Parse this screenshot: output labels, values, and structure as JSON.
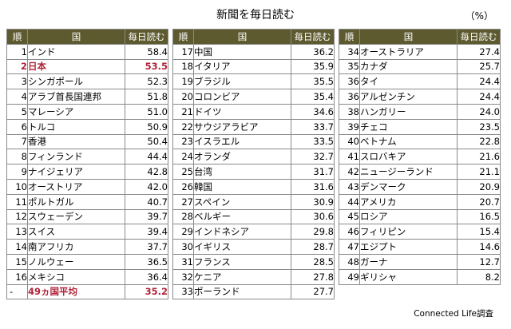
{
  "title": "新聞を毎日読む",
  "unit": "（%）",
  "headers": {
    "rank": "順",
    "country": "国",
    "value": "毎日読む"
  },
  "col1": [
    {
      "rank": "1",
      "country": "インド",
      "value": "58.4"
    },
    {
      "rank": "2",
      "country": "日本",
      "value": "53.5",
      "highlight": true
    },
    {
      "rank": "3",
      "country": "シンガポール",
      "value": "52.3"
    },
    {
      "rank": "4",
      "country": "アラブ首長国連邦",
      "value": "51.8"
    },
    {
      "rank": "5",
      "country": "マレーシア",
      "value": "51.0"
    },
    {
      "rank": "6",
      "country": "トルコ",
      "value": "50.9"
    },
    {
      "rank": "7",
      "country": "香港",
      "value": "50.4"
    },
    {
      "rank": "8",
      "country": "フィンランド",
      "value": "44.4"
    },
    {
      "rank": "9",
      "country": "ナイジェリア",
      "value": "42.8"
    },
    {
      "rank": "10",
      "country": "オーストリア",
      "value": "42.0"
    },
    {
      "rank": "11",
      "country": "ポルトガル",
      "value": "40.7"
    },
    {
      "rank": "12",
      "country": "スウェーデン",
      "value": "39.7"
    },
    {
      "rank": "13",
      "country": "スイス",
      "value": "39.4"
    },
    {
      "rank": "14",
      "country": "南アフリカ",
      "value": "37.7"
    },
    {
      "rank": "15",
      "country": "ノルウェー",
      "value": "36.5"
    },
    {
      "rank": "16",
      "country": "メキシコ",
      "value": "36.4"
    }
  ],
  "average": {
    "rank": "-",
    "country": "49ヵ国平均",
    "value": "35.2"
  },
  "col2": [
    {
      "rank": "17",
      "country": "中国",
      "value": "36.2"
    },
    {
      "rank": "18",
      "country": "イタリア",
      "value": "35.9"
    },
    {
      "rank": "19",
      "country": "ブラジル",
      "value": "35.5"
    },
    {
      "rank": "20",
      "country": "コロンビア",
      "value": "35.4"
    },
    {
      "rank": "21",
      "country": "ドイツ",
      "value": "34.6"
    },
    {
      "rank": "22",
      "country": "サウジアラビア",
      "value": "33.7"
    },
    {
      "rank": "23",
      "country": "イスラエル",
      "value": "33.5"
    },
    {
      "rank": "24",
      "country": "オランダ",
      "value": "32.7"
    },
    {
      "rank": "25",
      "country": "台湾",
      "value": "31.7"
    },
    {
      "rank": "26",
      "country": "韓国",
      "value": "31.6"
    },
    {
      "rank": "27",
      "country": "スペイン",
      "value": "30.9"
    },
    {
      "rank": "28",
      "country": "ベルギー",
      "value": "30.6"
    },
    {
      "rank": "29",
      "country": "インドネシア",
      "value": "29.8"
    },
    {
      "rank": "30",
      "country": "イギリス",
      "value": "28.7"
    },
    {
      "rank": "31",
      "country": "フランス",
      "value": "28.5"
    },
    {
      "rank": "32",
      "country": "ケニア",
      "value": "27.8"
    },
    {
      "rank": "33",
      "country": "ポーランド",
      "value": "27.7"
    }
  ],
  "col3": [
    {
      "rank": "34",
      "country": "オーストラリア",
      "value": "27.4"
    },
    {
      "rank": "35",
      "country": "カナダ",
      "value": "25.7"
    },
    {
      "rank": "36",
      "country": "タイ",
      "value": "24.4"
    },
    {
      "rank": "36",
      "country": "アルゼンチン",
      "value": "24.4"
    },
    {
      "rank": "38",
      "country": "ハンガリー",
      "value": "24.0"
    },
    {
      "rank": "39",
      "country": "チェコ",
      "value": "23.5"
    },
    {
      "rank": "40",
      "country": "ベトナム",
      "value": "22.8"
    },
    {
      "rank": "41",
      "country": "スロバキア",
      "value": "21.6"
    },
    {
      "rank": "42",
      "country": "ニュージーランド",
      "value": "21.1"
    },
    {
      "rank": "43",
      "country": "デンマーク",
      "value": "20.9"
    },
    {
      "rank": "44",
      "country": "アメリカ",
      "value": "20.7"
    },
    {
      "rank": "45",
      "country": "ロシア",
      "value": "16.5"
    },
    {
      "rank": "46",
      "country": "フィリピン",
      "value": "15.4"
    },
    {
      "rank": "47",
      "country": "エジプト",
      "value": "14.6"
    },
    {
      "rank": "48",
      "country": "ガーナ",
      "value": "12.7"
    },
    {
      "rank": "49",
      "country": "ギリシャ",
      "value": "8.2"
    }
  ],
  "credit": "Connected Life調査"
}
